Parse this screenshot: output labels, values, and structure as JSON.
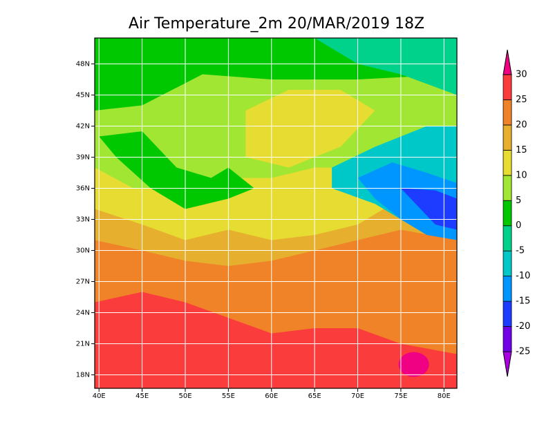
{
  "map": {
    "title": "Air Temperature_2m 20/MAR/2019 18Z",
    "xlim": [
      39.5,
      81.5
    ],
    "ylim": [
      16.7,
      50.5
    ],
    "xticks": [
      {
        "value": 40,
        "label": "40E"
      },
      {
        "value": 45,
        "label": "45E"
      },
      {
        "value": 50,
        "label": "50E"
      },
      {
        "value": 55,
        "label": "55E"
      },
      {
        "value": 60,
        "label": "60E"
      },
      {
        "value": 65,
        "label": "65E"
      },
      {
        "value": 70,
        "label": "70E"
      },
      {
        "value": 75,
        "label": "75E"
      },
      {
        "value": 80,
        "label": "80E"
      }
    ],
    "yticks": [
      {
        "value": 18,
        "label": "18N"
      },
      {
        "value": 21,
        "label": "21N"
      },
      {
        "value": 24,
        "label": "24N"
      },
      {
        "value": 27,
        "label": "27N"
      },
      {
        "value": 30,
        "label": "30N"
      },
      {
        "value": 33,
        "label": "33N"
      },
      {
        "value": 36,
        "label": "36N"
      },
      {
        "value": 39,
        "label": "39N"
      },
      {
        "value": 42,
        "label": "42N"
      },
      {
        "value": 45,
        "label": "45N"
      },
      {
        "value": 48,
        "label": "48N"
      }
    ],
    "grid": true,
    "colorbar": {
      "levels": [
        -25,
        -20,
        -15,
        -10,
        -5,
        0,
        5,
        10,
        15,
        20,
        25,
        30
      ],
      "colors": [
        "#a800e0",
        "#7000e8",
        "#1e3cff",
        "#0096ff",
        "#00c8c8",
        "#00d28c",
        "#00c800",
        "#a0e632",
        "#e6dc32",
        "#e6af2d",
        "#f08228",
        "#fa3c3c",
        "#f00082"
      ]
    }
  }
}
